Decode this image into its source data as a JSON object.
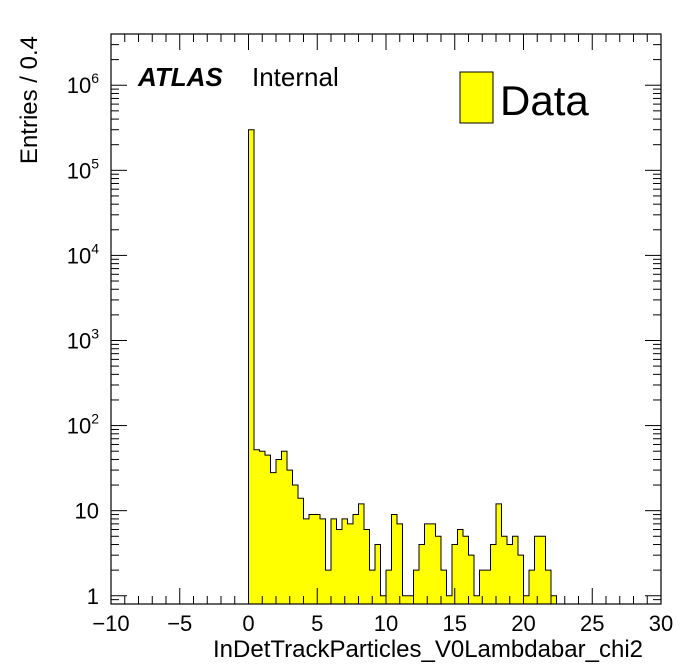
{
  "chart_data": {
    "type": "bar",
    "style": "histogram",
    "x_label": "InDetTrackParticles_V0Lambdabar_chi2",
    "y_label": "Entries / 0.4",
    "xlim": [
      -10,
      30
    ],
    "ylim": [
      0.8,
      4000000
    ],
    "y_scale": "log",
    "x_ticks": [
      -10,
      -5,
      0,
      5,
      10,
      15,
      20,
      25,
      30
    ],
    "x_tick_labels": [
      "−10",
      "−5",
      "0",
      "5",
      "10",
      "15",
      "20",
      "25",
      "30"
    ],
    "y_ticks": [
      {
        "value": 1,
        "base": "1",
        "exp": ""
      },
      {
        "value": 10,
        "base": "10",
        "exp": ""
      },
      {
        "value": 100,
        "base": "10",
        "exp": "2"
      },
      {
        "value": 1000,
        "base": "10",
        "exp": "3"
      },
      {
        "value": 10000,
        "base": "10",
        "exp": "4"
      },
      {
        "value": 100000,
        "base": "10",
        "exp": "5"
      },
      {
        "value": 1000000,
        "base": "10",
        "exp": "6"
      }
    ],
    "bin_width": 0.4,
    "bin_start": 0.0,
    "values": [
      300000,
      52,
      50,
      45,
      28,
      40,
      50,
      30,
      20,
      14,
      8,
      9,
      9,
      8,
      2,
      8,
      6,
      8,
      7,
      9,
      12,
      6,
      2,
      4,
      1,
      2,
      9,
      7,
      1,
      1,
      2,
      4,
      7,
      7,
      5,
      2,
      1,
      4,
      6,
      5,
      3,
      1,
      2,
      2,
      4,
      12,
      5,
      4,
      5,
      3,
      1,
      2,
      5,
      5,
      2,
      1
    ],
    "fill_color": "#ffff00",
    "line_color": "#000000",
    "legend": {
      "label": "Data",
      "position": "top-right"
    },
    "annotations": {
      "atlas": "ATLAS",
      "status": "Internal"
    }
  }
}
